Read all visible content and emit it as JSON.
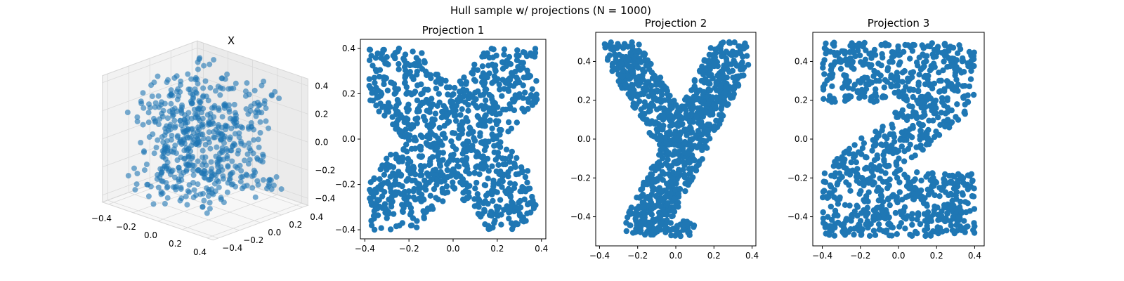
{
  "figure": {
    "suptitle": "Hull sample w/ projections (N = 1000)"
  },
  "chart_data": [
    {
      "type": "scatter",
      "title": "X",
      "projection": "3d",
      "xlim": [
        -0.4,
        0.4
      ],
      "ylim": [
        -0.4,
        0.4
      ],
      "zlim": [
        -0.4,
        0.4
      ],
      "x_ticks": [
        "−0.4",
        "−0.2",
        "0.0",
        "0.2",
        "0.4"
      ],
      "y_ticks": [
        "−0.4",
        "−0.2",
        "0.0",
        "0.2",
        "0.4"
      ],
      "z_ticks": [
        "−0.4",
        "−0.2",
        "0.0",
        "0.2",
        "0.4"
      ],
      "marker_color": "#1f77b4",
      "n_points": 1000
    },
    {
      "type": "scatter",
      "title": "Projection 1",
      "shape": "letter-X",
      "xlim": [
        -0.42,
        0.42
      ],
      "ylim": [
        -0.44,
        0.44
      ],
      "x_ticks": [
        "−0.4",
        "−0.2",
        "0.0",
        "0.2",
        "0.4"
      ],
      "y_ticks": [
        "−0.4",
        "−0.2",
        "0.0",
        "0.2",
        "0.4"
      ],
      "marker_color": "#1f77b4",
      "n_points": 1000
    },
    {
      "type": "scatter",
      "title": "Projection 2",
      "shape": "letter-Y",
      "xlim": [
        -0.42,
        0.42
      ],
      "ylim": [
        -0.55,
        0.55
      ],
      "x_ticks": [
        "−0.4",
        "−0.2",
        "0.0",
        "0.2",
        "0.4"
      ],
      "y_ticks": [
        "−0.4",
        "−0.2",
        "0.0",
        "0.2",
        "0.4"
      ],
      "marker_color": "#1f77b4",
      "n_points": 1000
    },
    {
      "type": "scatter",
      "title": "Projection 3",
      "shape": "letter-Z",
      "xlim": [
        -0.45,
        0.45
      ],
      "ylim": [
        -0.55,
        0.55
      ],
      "x_ticks": [
        "−0.4",
        "−0.2",
        "0.0",
        "0.2",
        "0.4"
      ],
      "y_ticks": [
        "−0.4",
        "−0.2",
        "0.0",
        "0.2",
        "0.4"
      ],
      "marker_color": "#1f77b4",
      "n_points": 1000
    }
  ]
}
